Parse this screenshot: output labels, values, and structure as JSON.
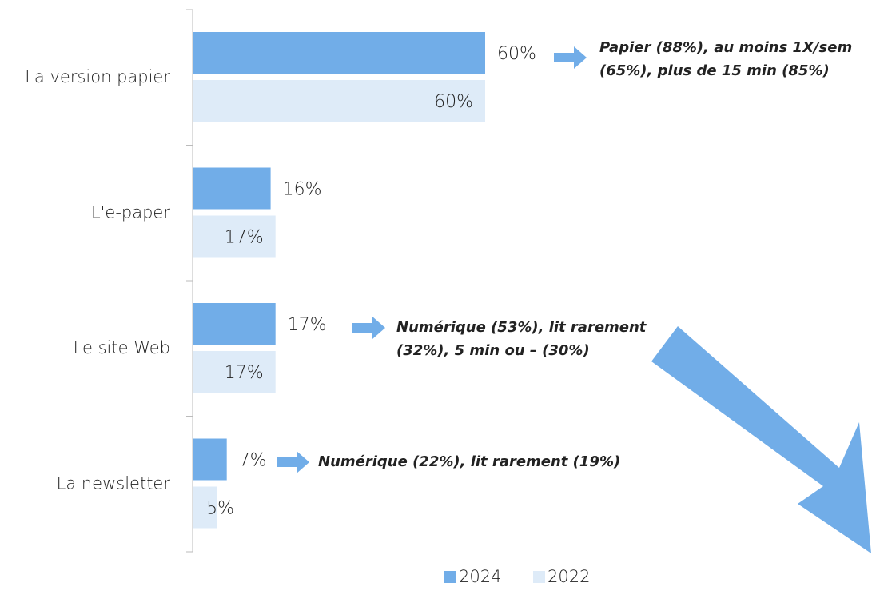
{
  "chart_data": {
    "type": "hbar",
    "categories": [
      "La version papier",
      "L'e-paper",
      "Le site Web",
      "La newsletter"
    ],
    "series": [
      {
        "name": "2024",
        "color": "#71ade8",
        "values": [
          60,
          16,
          17,
          7
        ],
        "value_labels": [
          "60%",
          "16%",
          "17%",
          "7%"
        ]
      },
      {
        "name": "2022",
        "color": "#deebf8",
        "values": [
          60,
          17,
          17,
          5
        ],
        "value_labels": [
          "60%",
          "17%",
          "17%",
          "5%"
        ]
      }
    ],
    "xlim": [
      0,
      140
    ],
    "annotations": [
      [
        "Papier (88%), au moins 1X/sem",
        "(65%), plus de 15 min (85%)"
      ],
      [
        "Numérique (53%), lit rarement",
        "(32%), 5 min ou – (30%)"
      ],
      [
        "Numérique (22%), lit rarement (19%)"
      ]
    ],
    "legend": "bottom"
  }
}
